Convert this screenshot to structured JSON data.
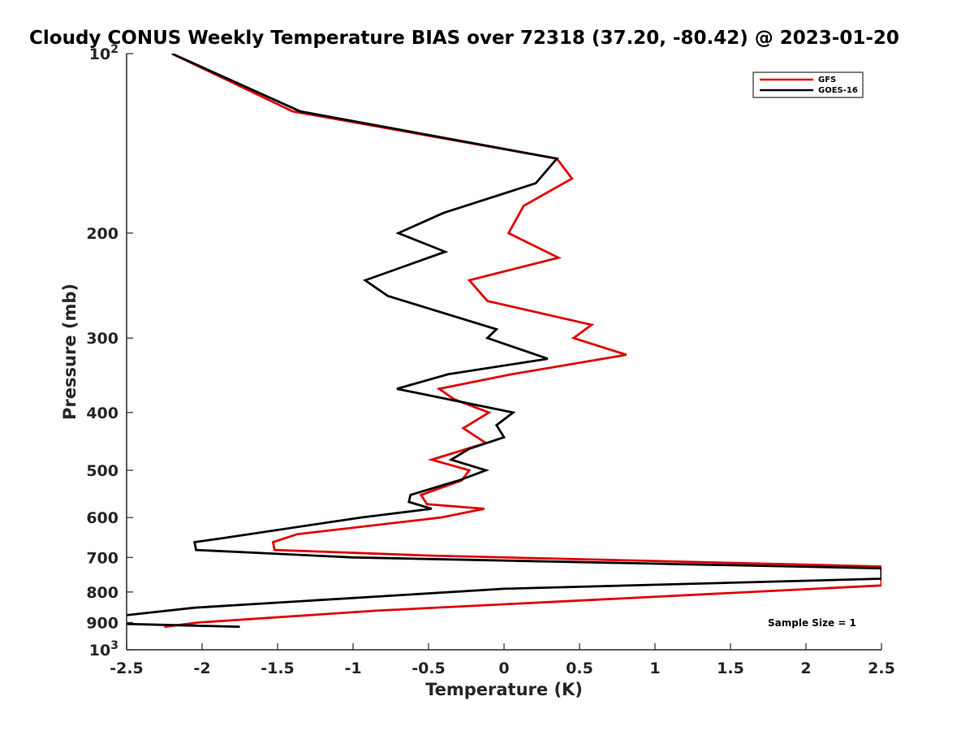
{
  "chart_data": {
    "type": "line",
    "title": "Cloudy CONUS Weekly Temperature BIAS over 72318 (37.20, -80.42) @ 2023-01-20",
    "xlabel": "Temperature (K)",
    "ylabel": "Pressure (mb)",
    "xlim": [
      -2.5,
      2.5
    ],
    "ylim": [
      100,
      1000
    ],
    "y_scale": "log",
    "y_reversed": true,
    "x_ticks": [
      -2.5,
      -2,
      -1.5,
      -1,
      -0.5,
      0,
      0.5,
      1,
      1.5,
      2,
      2.5
    ],
    "x_tick_labels": [
      "-2.5",
      "-2",
      "-1.5",
      "-1",
      "-0.5",
      "0",
      "0.5",
      "1",
      "1.5",
      "2",
      "2.5"
    ],
    "y_ticks": [
      100,
      200,
      300,
      400,
      500,
      600,
      700,
      800,
      900,
      1000
    ],
    "y_tick_labels": [
      {
        "base": "10",
        "exp": "2"
      },
      {
        "base": "200",
        "exp": ""
      },
      {
        "base": "300",
        "exp": ""
      },
      {
        "base": "400",
        "exp": ""
      },
      {
        "base": "500",
        "exp": ""
      },
      {
        "base": "600",
        "exp": ""
      },
      {
        "base": "700",
        "exp": ""
      },
      {
        "base": "800",
        "exp": ""
      },
      {
        "base": "900",
        "exp": ""
      },
      {
        "base": "10",
        "exp": "3"
      }
    ],
    "grid": false,
    "legend_position": "top-right",
    "annotation": "Sample Size = 1",
    "series": [
      {
        "name": "GFS",
        "color": "#e00000",
        "points": [
          [
            -2.2,
            100
          ],
          [
            -1.4,
            125
          ],
          [
            0.35,
            150
          ],
          [
            0.45,
            162
          ],
          [
            0.13,
            180
          ],
          [
            0.03,
            200
          ],
          [
            0.36,
            220
          ],
          [
            -0.23,
            240
          ],
          [
            -0.11,
            260
          ],
          [
            0.58,
            285
          ],
          [
            0.46,
            300
          ],
          [
            0.81,
            320
          ],
          [
            0.05,
            345
          ],
          [
            -0.43,
            365
          ],
          [
            -0.33,
            380
          ],
          [
            -0.1,
            400
          ],
          [
            -0.27,
            425
          ],
          [
            -0.12,
            450
          ],
          [
            -0.48,
            480
          ],
          [
            -0.23,
            500
          ],
          [
            -0.28,
            520
          ],
          [
            -0.55,
            550
          ],
          [
            -0.51,
            570
          ],
          [
            -0.13,
            580
          ],
          [
            -0.42,
            600
          ],
          [
            -1.37,
            640
          ],
          [
            -1.53,
            660
          ],
          [
            -1.52,
            680
          ],
          [
            -0.5,
            695
          ],
          [
            2.5,
            725
          ],
          [
            2.5,
            780
          ],
          [
            -0.85,
            860
          ],
          [
            -2.02,
            900
          ],
          [
            -2.25,
            915
          ]
        ]
      },
      {
        "name": "GOES-16",
        "color": "#000000",
        "points": [
          [
            -2.2,
            100
          ],
          [
            -1.35,
            125
          ],
          [
            0.35,
            150
          ],
          [
            0.21,
            165
          ],
          [
            -0.4,
            185
          ],
          [
            -0.7,
            200
          ],
          [
            -0.39,
            215
          ],
          [
            -0.92,
            240
          ],
          [
            -0.77,
            255
          ],
          [
            -0.05,
            290
          ],
          [
            -0.11,
            300
          ],
          [
            0.29,
            325
          ],
          [
            -0.37,
            345
          ],
          [
            -0.71,
            365
          ],
          [
            0.06,
            400
          ],
          [
            -0.05,
            420
          ],
          [
            0.0,
            440
          ],
          [
            -0.23,
            460
          ],
          [
            -0.35,
            480
          ],
          [
            -0.12,
            500
          ],
          [
            -0.3,
            520
          ],
          [
            -0.62,
            550
          ],
          [
            -0.63,
            565
          ],
          [
            -0.48,
            580
          ],
          [
            -0.95,
            600
          ],
          [
            -1.87,
            650
          ],
          [
            -2.05,
            660
          ],
          [
            -2.04,
            680
          ],
          [
            -1.0,
            700
          ],
          [
            2.5,
            730
          ],
          [
            2.5,
            760
          ],
          [
            0.0,
            790
          ],
          [
            -2.05,
            850
          ],
          [
            -2.5,
            875
          ]
        ]
      },
      {
        "name": "",
        "color": "#000000",
        "points": [
          [
            -2.5,
            905
          ],
          [
            -1.75,
            915
          ]
        ]
      }
    ]
  }
}
